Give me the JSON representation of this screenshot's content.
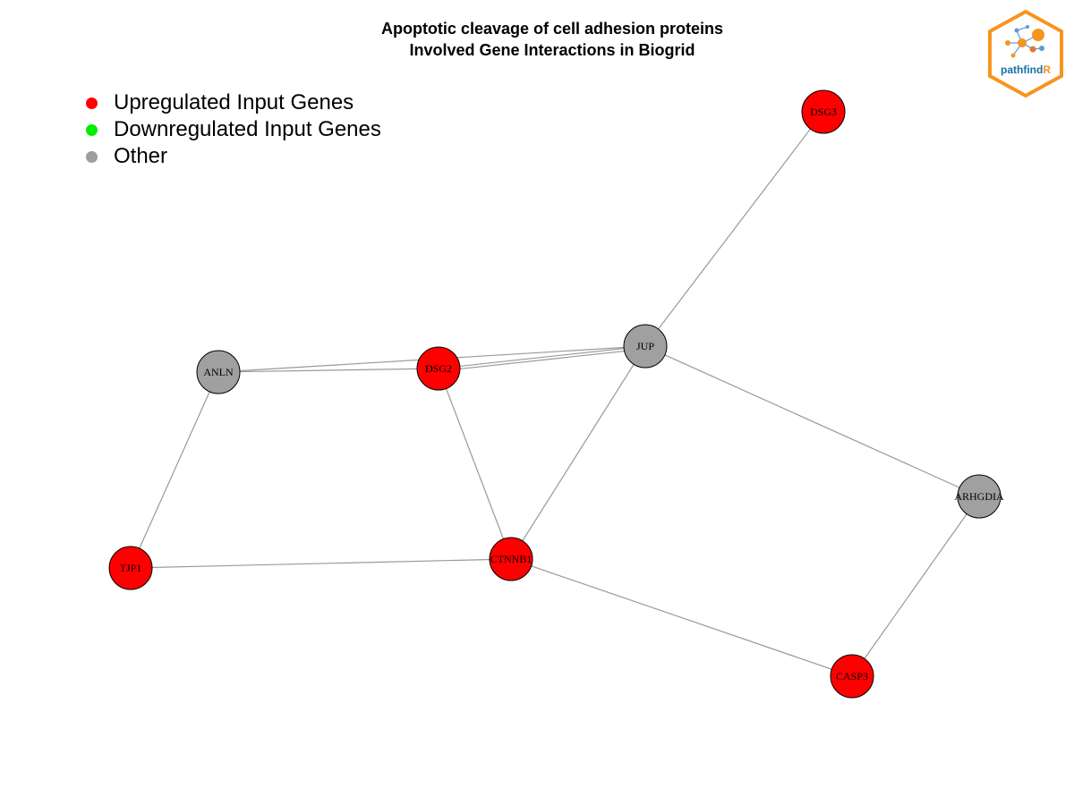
{
  "title": {
    "line1": "Apoptotic cleavage of cell adhesion  proteins",
    "line2": "Involved Gene Interactions in Biogrid"
  },
  "legend": [
    {
      "label": "Upregulated Input Genes",
      "color": "#ff0000"
    },
    {
      "label": "Downregulated Input Genes",
      "color": "#00ee00"
    },
    {
      "label": "Other",
      "color": "#9e9e9e"
    }
  ],
  "logo": {
    "text_main": "pathfind",
    "text_accent": "R",
    "border_color": "#f7941d",
    "text_color": "#1b6ea8"
  },
  "colors": {
    "up": "#ff0000",
    "down": "#00ee00",
    "other": "#a0a0a0",
    "edge": "#999999"
  },
  "nodes": [
    {
      "id": "DSG3",
      "type": "up"
    },
    {
      "id": "JUP",
      "type": "other"
    },
    {
      "id": "ANLN",
      "type": "other"
    },
    {
      "id": "DSG2",
      "type": "up"
    },
    {
      "id": "ARHGDIA",
      "type": "other"
    },
    {
      "id": "TJP1",
      "type": "up"
    },
    {
      "id": "CTNNB1",
      "type": "up"
    },
    {
      "id": "CASP3",
      "type": "up"
    }
  ],
  "edges": [
    [
      "DSG3",
      "JUP"
    ],
    [
      "ANLN",
      "JUP"
    ],
    [
      "ANLN",
      "DSG2"
    ],
    [
      "DSG2",
      "JUP"
    ],
    [
      "DSG2",
      "JUP"
    ],
    [
      "JUP",
      "ARHGDIA"
    ],
    [
      "JUP",
      "CTNNB1"
    ],
    [
      "DSG2",
      "CTNNB1"
    ],
    [
      "ANLN",
      "TJP1"
    ],
    [
      "TJP1",
      "CTNNB1"
    ],
    [
      "CTNNB1",
      "CASP3"
    ],
    [
      "ARHGDIA",
      "CASP3"
    ]
  ]
}
